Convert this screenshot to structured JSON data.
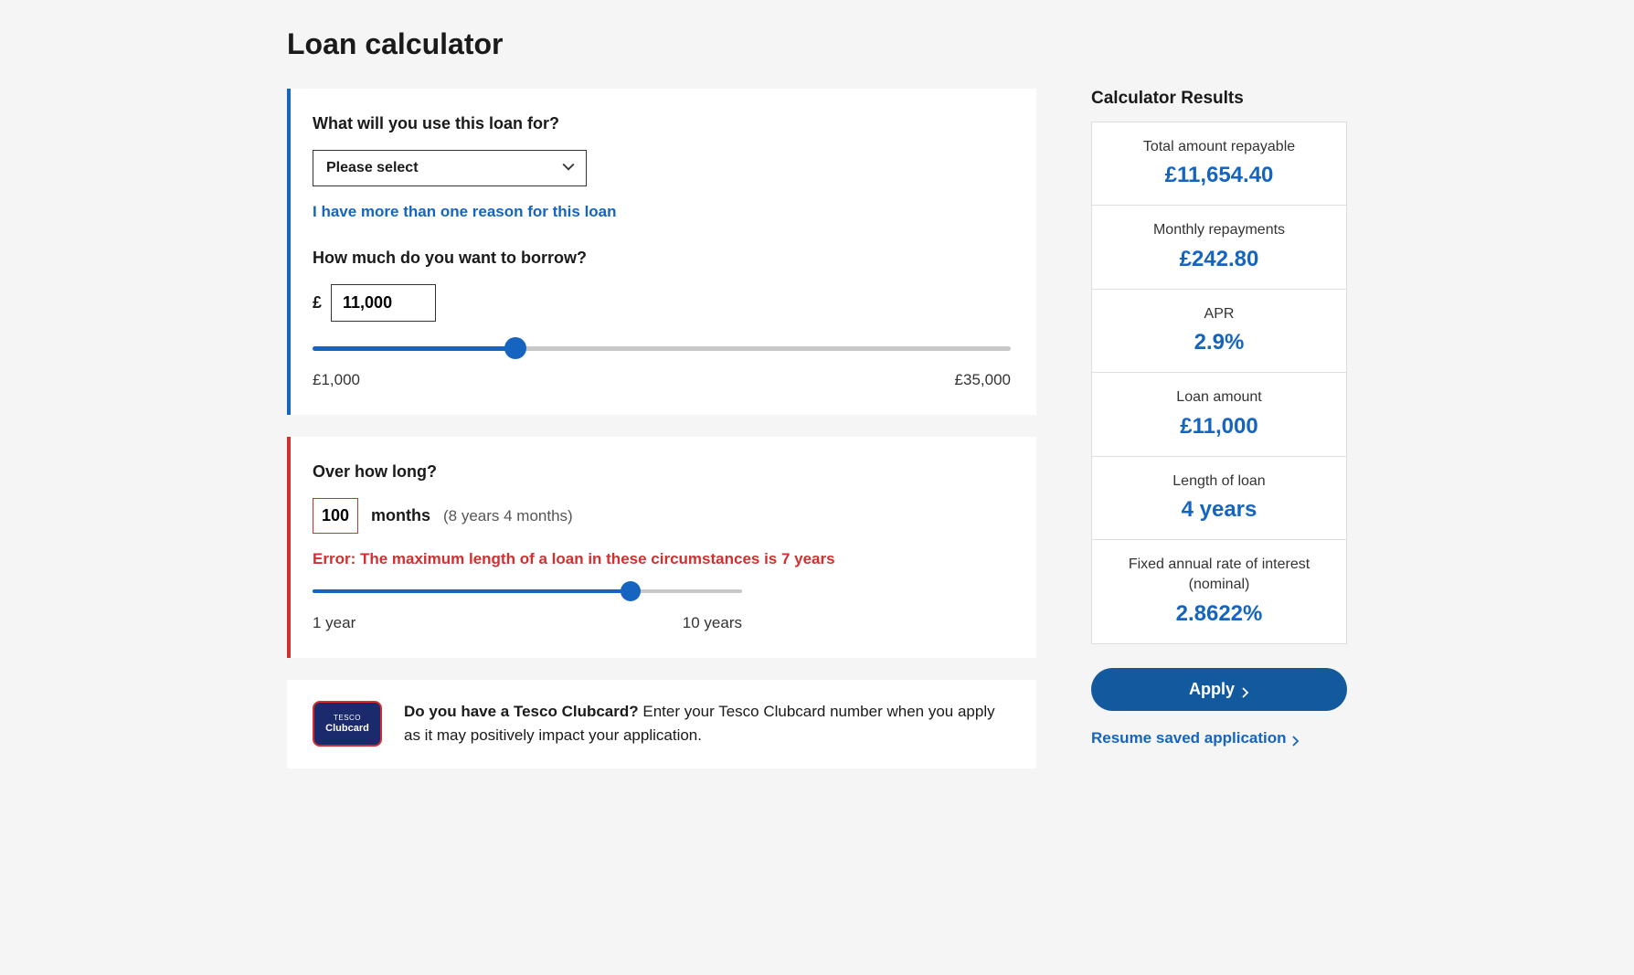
{
  "page": {
    "title": "Loan calculator"
  },
  "purpose": {
    "question": "What will you use this loan for?",
    "placeholder": "Please select",
    "multi_reason_link": "I have more than one reason for this loan"
  },
  "borrow": {
    "question": "How much do you want to borrow?",
    "currency": "£",
    "amount": "11,000",
    "slider": {
      "min_label": "£1,000",
      "max_label": "£35,000",
      "percent": 29
    }
  },
  "term": {
    "question": "Over how long?",
    "months_value": "100",
    "months_unit": "months",
    "months_conversion": "(8 years 4 months)",
    "error": "Error: The maximum length of a loan in these circumstances is 7 years",
    "slider": {
      "min_label": "1 year",
      "max_label": "10 years",
      "percent": 74
    }
  },
  "clubcard": {
    "badge_top": "TESCO",
    "badge_bottom": "Clubcard",
    "question": "Do you have a Tesco Clubcard?",
    "rest": "Enter your Tesco Clubcard number when you apply as it may positively impact your application."
  },
  "results": {
    "title": "Calculator Results",
    "items": [
      {
        "label": "Total amount repayable",
        "value": "£11,654.40"
      },
      {
        "label": "Monthly repayments",
        "value": "£242.80"
      },
      {
        "label": "APR",
        "value": "2.9%"
      },
      {
        "label": "Loan amount",
        "value": "£11,000"
      },
      {
        "label": "Length of loan",
        "value": "4 years"
      },
      {
        "label": "Fixed annual rate of interest (nominal)",
        "value": "2.8622%"
      }
    ],
    "apply_label": "Apply",
    "resume_label": "Resume saved application"
  },
  "colors": {
    "accent": "#1565c0",
    "error": "#d32f2f",
    "button": "#13599e"
  }
}
